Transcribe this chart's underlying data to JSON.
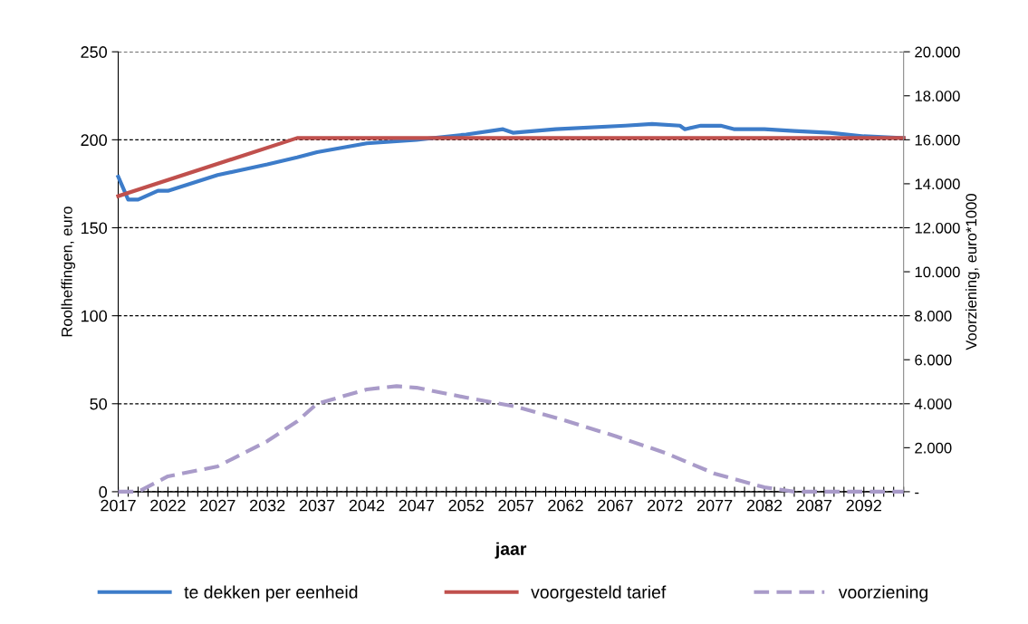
{
  "chart_data": {
    "type": "line",
    "xlabel": "jaar",
    "ylabel": "Roolheffingen, euro",
    "y2label": "Voorziening, euro*1000",
    "xlim": [
      2017,
      2096
    ],
    "xticks": [
      2017,
      {
        "value": 2018,
        "label": null
      },
      {
        "value": 2019,
        "label": null
      },
      {
        "value": 2020,
        "label": null
      },
      {
        "value": 2021,
        "label": null
      },
      2022,
      {
        "value": 2023,
        "label": null
      },
      {
        "value": 2024,
        "label": null
      },
      {
        "value": 2025,
        "label": null
      },
      {
        "value": 2026,
        "label": null
      },
      2027,
      {
        "value": 2028,
        "label": null
      },
      {
        "value": 2029,
        "label": null
      },
      {
        "value": 2030,
        "label": null
      },
      {
        "value": 2031,
        "label": null
      },
      2032,
      {
        "value": 2033,
        "label": null
      },
      {
        "value": 2034,
        "label": null
      },
      {
        "value": 2035,
        "label": null
      },
      {
        "value": 2036,
        "label": null
      },
      2037,
      {
        "value": 2038,
        "label": null
      },
      {
        "value": 2039,
        "label": null
      },
      {
        "value": 2040,
        "label": null
      },
      {
        "value": 2041,
        "label": null
      },
      2042,
      {
        "value": 2043,
        "label": null
      },
      {
        "value": 2044,
        "label": null
      },
      {
        "value": 2045,
        "label": null
      },
      {
        "value": 2046,
        "label": null
      },
      2047,
      {
        "value": 2048,
        "label": null
      },
      {
        "value": 2049,
        "label": null
      },
      {
        "value": 2050,
        "label": null
      },
      {
        "value": 2051,
        "label": null
      },
      2052,
      {
        "value": 2053,
        "label": null
      },
      {
        "value": 2054,
        "label": null
      },
      {
        "value": 2055,
        "label": null
      },
      {
        "value": 2056,
        "label": null
      },
      2057,
      {
        "value": 2058,
        "label": null
      },
      {
        "value": 2059,
        "label": null
      },
      {
        "value": 2060,
        "label": null
      },
      {
        "value": 2061,
        "label": null
      },
      2062,
      {
        "value": 2063,
        "label": null
      },
      {
        "value": 2064,
        "label": null
      },
      {
        "value": 2065,
        "label": null
      },
      {
        "value": 2066,
        "label": null
      },
      2067,
      {
        "value": 2068,
        "label": null
      },
      {
        "value": 2069,
        "label": null
      },
      {
        "value": 2070,
        "label": null
      },
      {
        "value": 2071,
        "label": null
      },
      2072,
      {
        "value": 2073,
        "label": null
      },
      {
        "value": 2074,
        "label": null
      },
      {
        "value": 2075,
        "label": null
      },
      {
        "value": 2076,
        "label": null
      },
      2077,
      {
        "value": 2078,
        "label": null
      },
      {
        "value": 2079,
        "label": null
      },
      {
        "value": 2080,
        "label": null
      },
      {
        "value": 2081,
        "label": null
      },
      2082,
      {
        "value": 2083,
        "label": null
      },
      {
        "value": 2084,
        "label": null
      },
      {
        "value": 2085,
        "label": null
      },
      {
        "value": 2086,
        "label": null
      },
      2087,
      {
        "value": 2088,
        "label": null
      },
      {
        "value": 2089,
        "label": null
      },
      {
        "value": 2090,
        "label": null
      },
      {
        "value": 2091,
        "label": null
      },
      2092,
      {
        "value": 2093,
        "label": null
      },
      {
        "value": 2094,
        "label": null
      },
      {
        "value": 2095,
        "label": null
      },
      {
        "value": 2096,
        "label": null
      }
    ],
    "ylim": [
      0,
      250
    ],
    "yticks": [
      0,
      50,
      100,
      150,
      200,
      250
    ],
    "y2lim": [
      0,
      20000
    ],
    "y2ticks": [
      {
        "value": 0,
        "label": "-"
      },
      {
        "value": 2000,
        "label": "2.000"
      },
      {
        "value": 4000,
        "label": "4.000"
      },
      {
        "value": 6000,
        "label": "6.000"
      },
      {
        "value": 8000,
        "label": "8.000"
      },
      {
        "value": 10000,
        "label": "10.000"
      },
      {
        "value": 12000,
        "label": "12.000"
      },
      {
        "value": 14000,
        "label": "14.000"
      },
      {
        "value": 16000,
        "label": "16.000"
      },
      {
        "value": 18000,
        "label": "18.000"
      },
      {
        "value": 20000,
        "label": "20.000"
      }
    ],
    "grid": "y",
    "legend": "bottom",
    "marker": "none",
    "series": [
      {
        "name": "te dekken per eenheid",
        "color": "#3d7cc9",
        "line_style": "solid",
        "x": [
          2017,
          2018,
          2019,
          2021,
          2022,
          2027,
          2032,
          2035,
          2037,
          2042,
          2047,
          2052,
          2055.7,
          2056.7,
          2061,
          2068,
          2070.7,
          2073.5,
          2074,
          2075.6,
          2077.6,
          2079,
          2082,
          2085,
          2088.6,
          2092,
          2096
        ],
        "values": [
          179,
          166,
          166,
          171,
          171,
          180,
          186,
          190,
          193,
          198,
          200,
          203,
          206,
          204,
          206,
          208,
          209,
          208,
          206,
          208,
          208,
          206,
          206,
          205,
          204,
          202,
          201
        ]
      },
      {
        "name": "voorgesteld tarief",
        "color": "#c0504d",
        "line_style": "solid",
        "x": [
          2017,
          2035,
          2096
        ],
        "values": [
          168,
          201,
          201
        ]
      },
      {
        "name": "voorziening",
        "color": "#a99bc9",
        "line_style": "dashed",
        "axis": "y2",
        "x": [
          2017,
          2019,
          2022,
          2027,
          2032,
          2035,
          2037,
          2042,
          2045,
          2047,
          2052,
          2057,
          2062,
          2067,
          2072,
          2077,
          2082,
          2085,
          2096
        ],
        "values": [
          0,
          0,
          700,
          1150,
          2300,
          3200,
          4000,
          4650,
          4800,
          4730,
          4280,
          3870,
          3230,
          2530,
          1770,
          820,
          200,
          0,
          0
        ]
      }
    ]
  }
}
